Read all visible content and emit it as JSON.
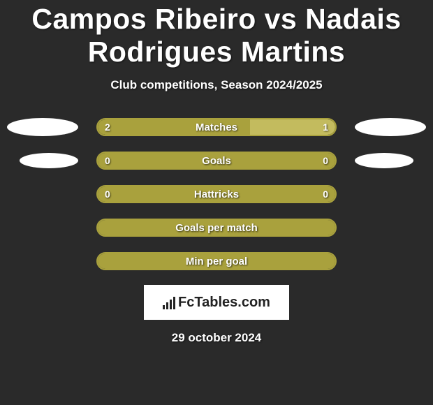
{
  "background_color": "#2a2a2a",
  "text_color": "#ffffff",
  "title": "Campos Ribeiro vs Nadais Rodrigues Martins",
  "subtitle": "Club competitions, Season 2024/2025",
  "colors": {
    "bar_fill": "#a9a13d",
    "bar_fill_light": "#c3bb5e",
    "bar_border": "#a9a13d",
    "avatar": "#ffffff"
  },
  "stats": [
    {
      "label": "Matches",
      "left_value": "2",
      "right_value": "1",
      "left_pct": 64,
      "right_pct": 36,
      "show_avatars": true,
      "avatar_variant": "r1",
      "right_fill_light": true
    },
    {
      "label": "Goals",
      "left_value": "0",
      "right_value": "0",
      "left_pct": 100,
      "right_pct": 0,
      "show_avatars": true,
      "avatar_variant": "r2",
      "right_fill_light": true
    },
    {
      "label": "Hattricks",
      "left_value": "0",
      "right_value": "0",
      "left_pct": 100,
      "right_pct": 0,
      "show_avatars": false,
      "right_fill_light": false
    },
    {
      "label": "Goals per match",
      "left_value": "",
      "right_value": "",
      "left_pct": 100,
      "right_pct": 0,
      "show_avatars": false,
      "right_fill_light": false
    },
    {
      "label": "Min per goal",
      "left_value": "",
      "right_value": "",
      "left_pct": 100,
      "right_pct": 0,
      "show_avatars": false,
      "right_fill_light": false
    }
  ],
  "logo_text": "FcTables.com",
  "date": "29 october 2024"
}
